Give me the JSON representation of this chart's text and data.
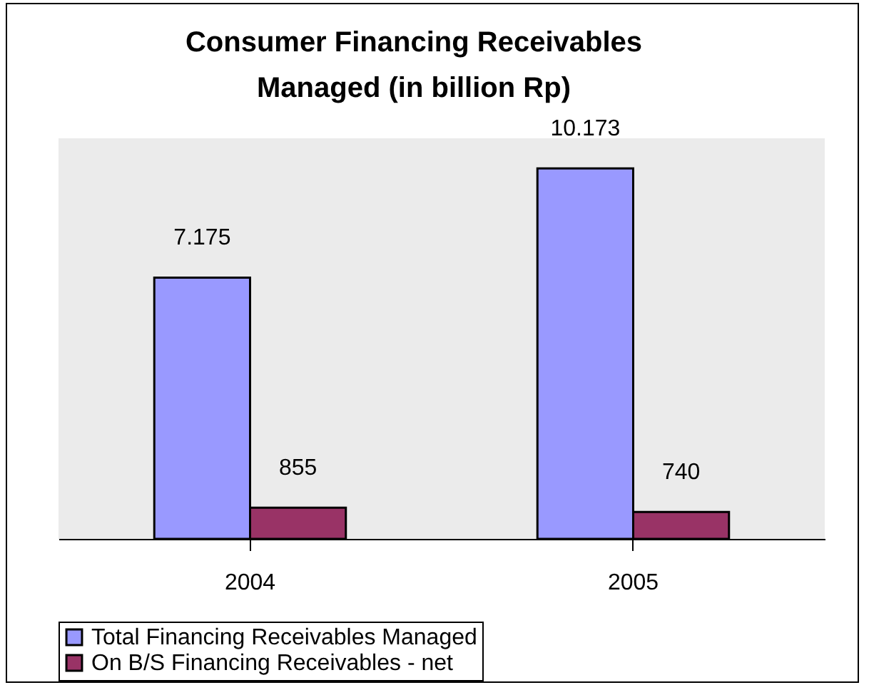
{
  "chart_data": {
    "type": "bar",
    "title": "Consumer Financing Receivables Managed (in billion Rp)",
    "categories": [
      "2004",
      "2005"
    ],
    "series": [
      {
        "name": "Total Financing Receivables Managed",
        "color": "#9999ff",
        "values": [
          7175,
          10173
        ],
        "value_labels": [
          "7.175",
          "10.173"
        ]
      },
      {
        "name": "On B/S Financing Receivables - net",
        "color": "#993366",
        "values": [
          855,
          740
        ],
        "value_labels": [
          "855",
          "740"
        ]
      }
    ],
    "legend": "bottom",
    "grid": false
  }
}
